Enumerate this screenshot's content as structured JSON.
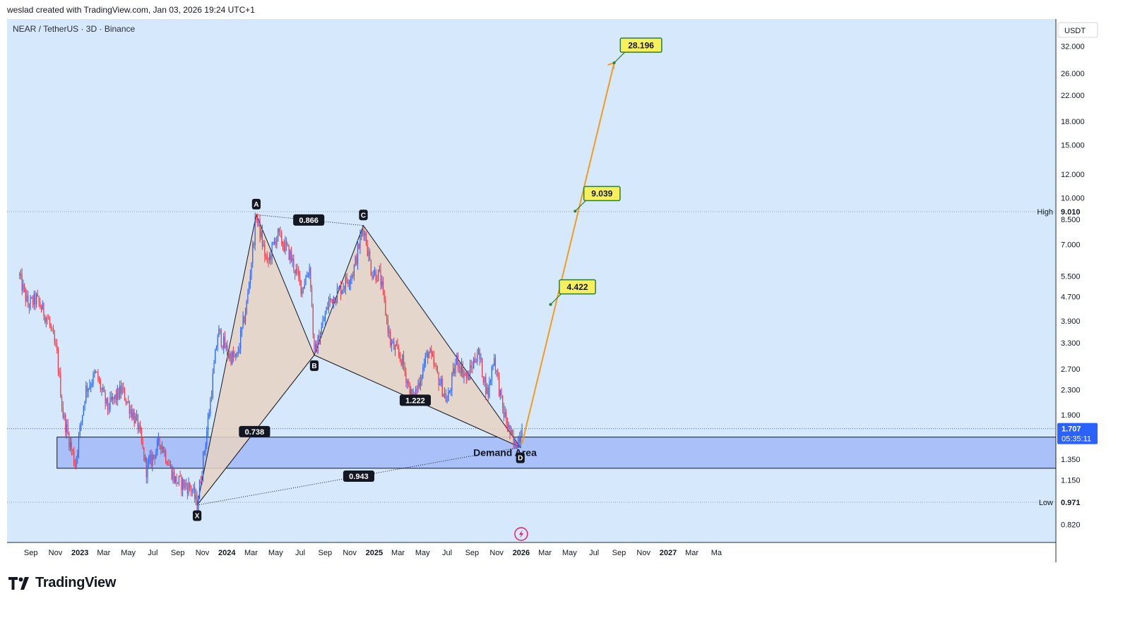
{
  "header": {
    "credit": "weslad created with TradingView.com, Jan 03, 2026 19:24 UTC+1",
    "symbol": "NEAR / TetherUS · 3D · Binance"
  },
  "footer": {
    "brand": "TradingView"
  },
  "colors": {
    "background": "#d6e8fb",
    "up_candle": "#2962ff",
    "down_candle": "#f23645",
    "pattern_fill": "#e7d2c3",
    "demand_zone": "#a9c0f9",
    "projection": "#f59b1c",
    "target_label_bg": "#f7f05c",
    "target_label_border": "#2e7d32",
    "price_badge": "#2962ff"
  },
  "chart_data": {
    "type": "candlestick",
    "scale": "log",
    "currency_label": "USDT",
    "time_axis": [
      "Sep",
      "Nov",
      "2023",
      "Mar",
      "May",
      "Jul",
      "Sep",
      "Nov",
      "2024",
      "Mar",
      "May",
      "Jul",
      "Sep",
      "Nov",
      "2025",
      "Mar",
      "May",
      "Jul",
      "Sep",
      "Nov",
      "2026",
      "Mar",
      "May",
      "Jul",
      "Sep",
      "Nov",
      "2027",
      "Mar",
      "Ma"
    ],
    "price_axis": [
      "32.000",
      "26.000",
      "22.000",
      "18.000",
      "15.000",
      "12.000",
      "10.000",
      "8.500",
      "7.000",
      "5.500",
      "4.700",
      "3.900",
      "3.300",
      "2.700",
      "2.300",
      "1.900",
      "1.350",
      "1.150",
      "0.820"
    ],
    "price_series_anchors": [
      {
        "date": "2022-08-01",
        "price": 5.6
      },
      {
        "date": "2022-08-25",
        "price": 4.4
      },
      {
        "date": "2022-09-15",
        "price": 4.6
      },
      {
        "date": "2022-10-15",
        "price": 3.9
      },
      {
        "date": "2022-11-05",
        "price": 3.0
      },
      {
        "date": "2022-11-20",
        "price": 1.9
      },
      {
        "date": "2022-12-20",
        "price": 1.3
      },
      {
        "date": "2023-01-15",
        "price": 2.3
      },
      {
        "date": "2023-02-10",
        "price": 2.6
      },
      {
        "date": "2023-03-10",
        "price": 2.0
      },
      {
        "date": "2023-04-15",
        "price": 2.3
      },
      {
        "date": "2023-05-25",
        "price": 1.75
      },
      {
        "date": "2023-06-15",
        "price": 1.25
      },
      {
        "date": "2023-07-20",
        "price": 1.55
      },
      {
        "date": "2023-08-25",
        "price": 1.15
      },
      {
        "date": "2023-10-05",
        "price": 1.08
      },
      {
        "date": "2023-10-19",
        "price": 0.95
      },
      {
        "date": "2023-11-15",
        "price": 1.8
      },
      {
        "date": "2023-12-10",
        "price": 3.6
      },
      {
        "date": "2024-01-05",
        "price": 3.0
      },
      {
        "date": "2024-01-25",
        "price": 2.9
      },
      {
        "date": "2024-02-20",
        "price": 4.5
      },
      {
        "date": "2024-03-14",
        "price": 8.8
      },
      {
        "date": "2024-04-10",
        "price": 6.0
      },
      {
        "date": "2024-05-05",
        "price": 7.6
      },
      {
        "date": "2024-06-05",
        "price": 6.5
      },
      {
        "date": "2024-07-05",
        "price": 5.0
      },
      {
        "date": "2024-07-25",
        "price": 5.9
      },
      {
        "date": "2024-08-05",
        "price": 3.0
      },
      {
        "date": "2024-09-10",
        "price": 4.5
      },
      {
        "date": "2024-10-15",
        "price": 5.1
      },
      {
        "date": "2024-11-10",
        "price": 5.7
      },
      {
        "date": "2024-12-05",
        "price": 8.1
      },
      {
        "date": "2024-12-25",
        "price": 5.7
      },
      {
        "date": "2025-01-15",
        "price": 5.5
      },
      {
        "date": "2025-02-10",
        "price": 3.3
      },
      {
        "date": "2025-03-10",
        "price": 2.9
      },
      {
        "date": "2025-04-07",
        "price": 2.1
      },
      {
        "date": "2025-05-15",
        "price": 3.1
      },
      {
        "date": "2025-06-10",
        "price": 2.5
      },
      {
        "date": "2025-07-01",
        "price": 2.1
      },
      {
        "date": "2025-07-25",
        "price": 2.9
      },
      {
        "date": "2025-08-20",
        "price": 2.5
      },
      {
        "date": "2025-09-15",
        "price": 3.1
      },
      {
        "date": "2025-10-10",
        "price": 2.2
      },
      {
        "date": "2025-10-25",
        "price": 3.0
      },
      {
        "date": "2025-11-15",
        "price": 2.0
      },
      {
        "date": "2025-12-15",
        "price": 1.48
      },
      {
        "date": "2026-01-03",
        "price": 1.707
      }
    ],
    "harmonic_points": [
      {
        "label": "X",
        "date": "2023-10-19",
        "price": 0.95
      },
      {
        "label": "A",
        "date": "2024-03-14",
        "price": 8.8
      },
      {
        "label": "B",
        "date": "2024-08-05",
        "price": 3.0
      },
      {
        "label": "C",
        "date": "2024-12-05",
        "price": 8.1
      },
      {
        "label": "D",
        "date": "2025-12-30",
        "price": 1.48
      }
    ],
    "ratios": [
      {
        "label": "0.738",
        "between": [
          "X",
          "B"
        ]
      },
      {
        "label": "0.866",
        "between": [
          "A",
          "C"
        ]
      },
      {
        "label": "1.222",
        "between": [
          "B",
          "D"
        ]
      },
      {
        "label": "0.943",
        "between": [
          "X",
          "D"
        ]
      }
    ],
    "demand_area": {
      "label": "Demand Area",
      "from": "2022-11-05",
      "to": "2026-01-03",
      "price_low": 1.26,
      "price_high": 1.6
    },
    "horizontal_levels": [
      {
        "label": "High",
        "price": 9.01,
        "value_text": "9.010"
      },
      {
        "label": "Low",
        "price": 0.971,
        "value_text": "0.971"
      }
    ],
    "projection": {
      "start": {
        "date": "2026-01-03",
        "price": 1.52
      },
      "end": {
        "date": "2026-08-20",
        "price": 28.196
      },
      "targets": [
        {
          "label": "4.422",
          "date": "2026-03-15",
          "price": 4.422
        },
        {
          "label": "9.039",
          "date": "2026-05-15",
          "price": 9.039
        },
        {
          "label": "28.196",
          "date": "2026-08-20",
          "price": 28.196
        }
      ]
    },
    "current_price": {
      "value": "1.707",
      "countdown": "05:35:11",
      "price": 1.707
    }
  }
}
